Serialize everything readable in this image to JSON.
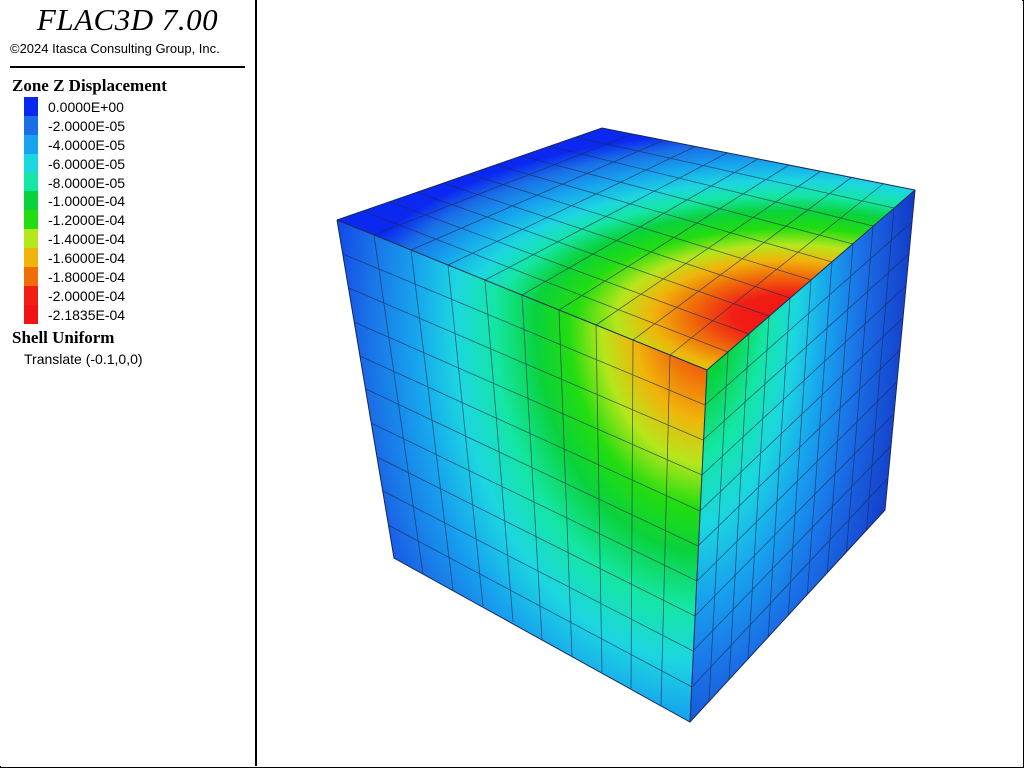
{
  "header": {
    "app_title": "FLAC3D 7.00",
    "copyright": "©2024 Itasca Consulting Group, Inc."
  },
  "legend": {
    "heading": "Zone Z Displacement",
    "entries": [
      {
        "label": "0.0000E+00",
        "color": "#0a28f0"
      },
      {
        "label": "-2.0000E-05",
        "color": "#1a6ee6"
      },
      {
        "label": "-4.0000E-05",
        "color": "#17a3ee"
      },
      {
        "label": "-6.0000E-05",
        "color": "#1cd6e0"
      },
      {
        "label": "-8.0000E-05",
        "color": "#14e6a3"
      },
      {
        "label": "-1.0000E-04",
        "color": "#0ad23c"
      },
      {
        "label": "-1.2000E-04",
        "color": "#22dd10"
      },
      {
        "label": "-1.4000E-04",
        "color": "#b6e61c"
      },
      {
        "label": "-1.6000E-04",
        "color": "#f0b40a"
      },
      {
        "label": "-1.8000E-04",
        "color": "#f06e0a"
      },
      {
        "label": "-2.0000E-04",
        "color": "#f01e14"
      },
      {
        "label": "-2.1835E-04",
        "color": "#f01414"
      }
    ]
  },
  "shell": {
    "heading": "Shell Uniform",
    "subtitle": "Translate (-0.1,0,0)"
  },
  "model_colors": {
    "top_face": "#1a44b8",
    "left_face": "#1f50c4",
    "right_face": "#0e2fb0",
    "grid": "#1a2a55"
  }
}
